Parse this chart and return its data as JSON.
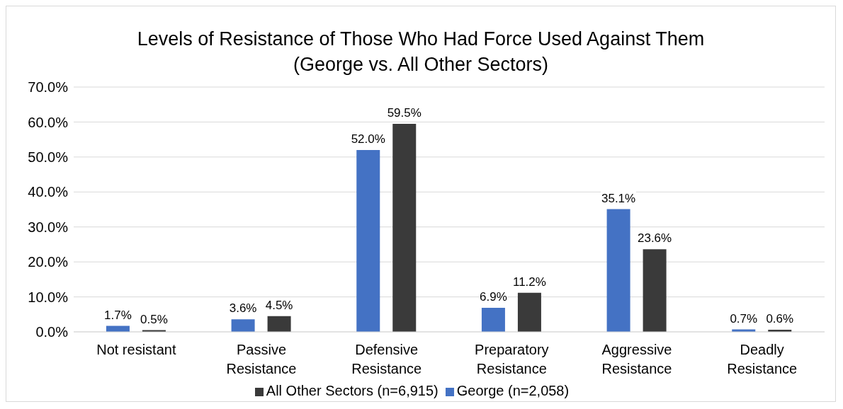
{
  "chart_data": {
    "type": "bar",
    "title": "Levels of Resistance of Those Who Had Force Used Against Them (George vs. All Other Sectors)",
    "categories": [
      "Not resistant",
      "Passive Resistance",
      "Defensive Resistance",
      "Preparatory Resistance",
      "Aggressive Resistance",
      "Deadly Resistance"
    ],
    "series": [
      {
        "name": "George (n=2,058)",
        "color": "#4472c4",
        "values": [
          1.7,
          3.6,
          52.0,
          6.9,
          35.1,
          0.7
        ],
        "value_labels": [
          "1.7%",
          "3.6%",
          "52.0%",
          "6.9%",
          "35.1%",
          "0.7%"
        ]
      },
      {
        "name": "All Other Sectors (n=6,915)",
        "color": "#3a3a3a",
        "values": [
          0.5,
          4.5,
          59.5,
          11.2,
          23.6,
          0.6
        ],
        "value_labels": [
          "0.5%",
          "4.5%",
          "59.5%",
          "11.2%",
          "23.6%",
          "0.6%"
        ]
      }
    ],
    "ylim": [
      0,
      70
    ],
    "yticks": [
      {
        "value": 0,
        "label": "0.0%"
      },
      {
        "value": 10,
        "label": "10.0%"
      },
      {
        "value": 20,
        "label": "20.0%"
      },
      {
        "value": 30,
        "label": "30.0%"
      },
      {
        "value": 40,
        "label": "40.0%"
      },
      {
        "value": 50,
        "label": "50.0%"
      },
      {
        "value": 60,
        "label": "60.0%"
      },
      {
        "value": 70,
        "label": "70.0%"
      }
    ],
    "grid": "y",
    "legend": "bottom"
  }
}
